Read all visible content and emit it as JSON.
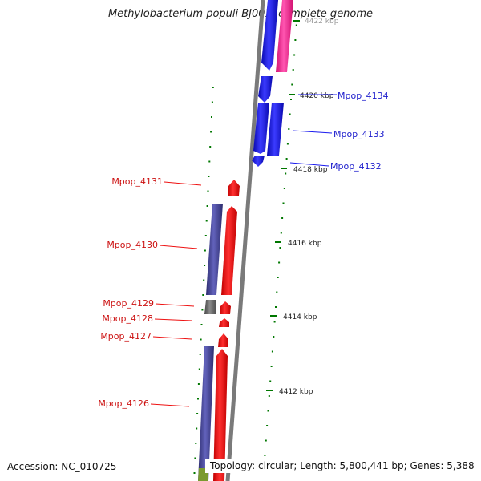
{
  "title": "Methylobacterium populi BJ001, complete genome",
  "accession": "Accession: NC_010725",
  "summary": "Topology: circular; Length: 5,800,441 bp; Genes: 5,388",
  "colors": {
    "forward_strand": "#1a1aee",
    "reverse_strand": "#ff1111",
    "magenta": "#ff2a9a",
    "purple": "#4a4aa0",
    "gray": "#6e6e6e",
    "olive": "#7a9a30",
    "tick_green": "#007700",
    "backbone": "#8a8a8a"
  },
  "tick_labels": [
    {
      "id": "4422",
      "text": "4422 kbp"
    },
    {
      "id": "4420",
      "text": "4420 kbp"
    },
    {
      "id": "4418",
      "text": "4418 kbp"
    },
    {
      "id": "4416",
      "text": "4416 kbp"
    },
    {
      "id": "4414",
      "text": "4414 kbp"
    },
    {
      "id": "4412",
      "text": "4412 kbp"
    }
  ],
  "gene_labels": {
    "right": [
      {
        "id": "4134",
        "text": "Mpop_4134"
      },
      {
        "id": "4133",
        "text": "Mpop_4133"
      },
      {
        "id": "4132",
        "text": "Mpop_4132"
      }
    ],
    "left": [
      {
        "id": "4131",
        "text": "Mpop_4131"
      },
      {
        "id": "4130",
        "text": "Mpop_4130"
      },
      {
        "id": "4129",
        "text": "Mpop_4129"
      },
      {
        "id": "4128",
        "text": "Mpop_4128"
      },
      {
        "id": "4127",
        "text": "Mpop_4127"
      },
      {
        "id": "4126",
        "text": "Mpop_4126"
      }
    ]
  }
}
